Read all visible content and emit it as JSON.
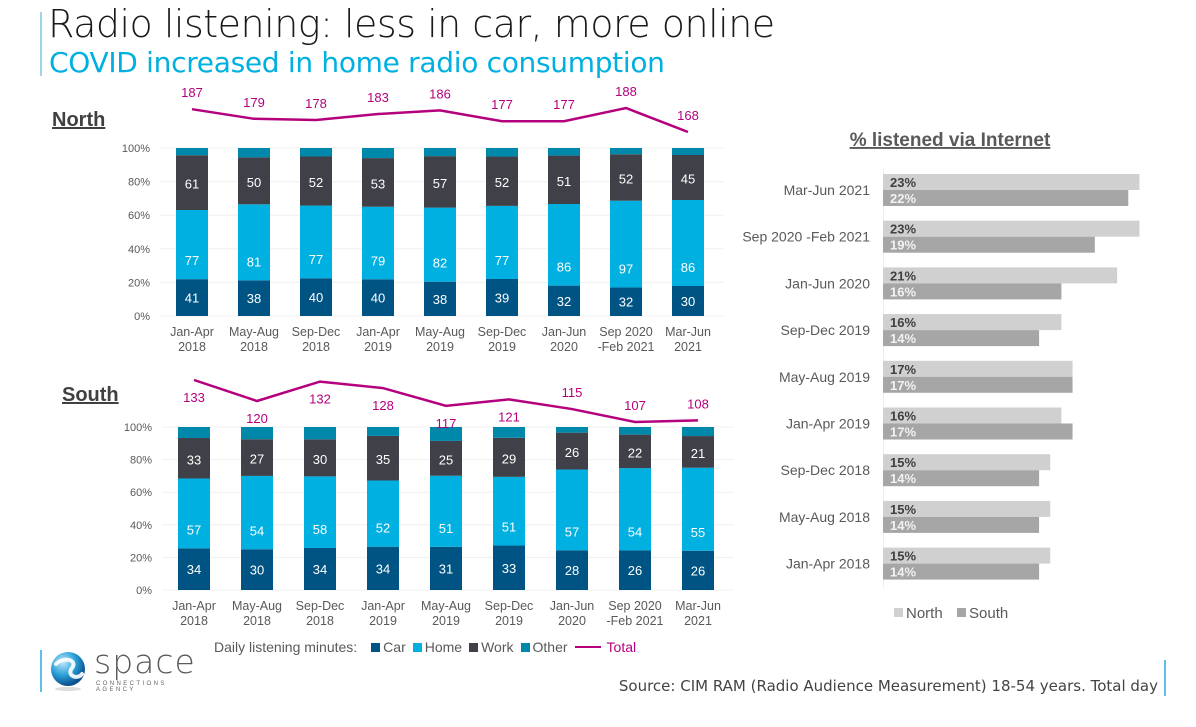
{
  "header": {
    "title": "Radio listening: less in car, more online",
    "subtitle": "COVID increased in home radio consumption"
  },
  "colors": {
    "car": "#005483",
    "home": "#00b0e0",
    "work": "#404048",
    "other": "#0088aa",
    "total": "#b5007e",
    "north": "#d0d0d0",
    "south": "#a6a6a6",
    "subtitle": "#00b0e0"
  },
  "legend": {
    "prefix": "Daily listening minutes:",
    "car": "Car",
    "home": "Home",
    "work": "Work",
    "other": "Other",
    "total": "Total"
  },
  "footer": {
    "logo_word": "space",
    "logo_tagline": "CONNECTIONS AGENCY",
    "source": "Source: CIM RAM (Radio Audience Measurement) 18-54 years. Total day"
  },
  "chart_data": [
    {
      "type": "bar",
      "stacked": "percent",
      "title": "North",
      "ylim": [
        0,
        100
      ],
      "yticks": [
        "0%",
        "20%",
        "40%",
        "60%",
        "80%",
        "100%"
      ],
      "categories": [
        [
          "Jan-Apr",
          "2018"
        ],
        [
          "May-Aug",
          "2018"
        ],
        [
          "Sep-Dec",
          "2018"
        ],
        [
          "Jan-Apr",
          "2019"
        ],
        [
          "May-Aug",
          "2019"
        ],
        [
          "Sep-Dec",
          "2019"
        ],
        [
          "Jan-Jun",
          "2020"
        ],
        [
          "Sep 2020",
          "-Feb 2021"
        ],
        [
          "Mar-Jun",
          "2021"
        ]
      ],
      "series": [
        {
          "name": "Car",
          "values": [
            41,
            38,
            40,
            40,
            38,
            39,
            32,
            32,
            30
          ]
        },
        {
          "name": "Home",
          "values": [
            77,
            81,
            77,
            79,
            82,
            77,
            86,
            97,
            86
          ]
        },
        {
          "name": "Work",
          "values": [
            61,
            50,
            52,
            53,
            57,
            52,
            51,
            52,
            45
          ]
        },
        {
          "name": "Other",
          "values": [
            8,
            10,
            9,
            11,
            9,
            9,
            8,
            7,
            7
          ]
        }
      ],
      "total": {
        "name": "Total",
        "values": [
          187,
          179,
          178,
          183,
          186,
          177,
          177,
          188,
          168
        ]
      }
    },
    {
      "type": "bar",
      "stacked": "percent",
      "title": "South",
      "ylim": [
        0,
        100
      ],
      "yticks": [
        "0%",
        "20%",
        "40%",
        "60%",
        "80%",
        "100%"
      ],
      "categories": [
        [
          "Jan-Apr",
          "2018"
        ],
        [
          "May-Aug",
          "2018"
        ],
        [
          "Sep-Dec",
          "2018"
        ],
        [
          "Jan-Apr",
          "2019"
        ],
        [
          "May-Aug",
          "2019"
        ],
        [
          "Sep-Dec",
          "2019"
        ],
        [
          "Jan-Jun",
          "2020"
        ],
        [
          "Sep 2020",
          "-Feb 2021"
        ],
        [
          "Mar-Jun",
          "2021"
        ]
      ],
      "series": [
        {
          "name": "Car",
          "values": [
            34,
            30,
            34,
            34,
            31,
            33,
            28,
            26,
            26
          ]
        },
        {
          "name": "Home",
          "values": [
            57,
            54,
            58,
            52,
            51,
            51,
            57,
            54,
            55
          ]
        },
        {
          "name": "Work",
          "values": [
            33,
            27,
            30,
            35,
            25,
            29,
            26,
            22,
            21
          ]
        },
        {
          "name": "Other",
          "values": [
            9,
            9,
            10,
            7,
            10,
            8,
            4,
            5,
            6
          ]
        }
      ],
      "total": {
        "name": "Total",
        "values": [
          133,
          120,
          132,
          128,
          117,
          121,
          115,
          107,
          108
        ]
      }
    },
    {
      "type": "bar",
      "orientation": "horizontal",
      "title": "% listened via Internet",
      "categories": [
        "Mar-Jun 2021",
        "Sep 2020 -Feb 2021",
        "Jan-Jun 2020",
        "Sep-Dec 2019",
        "May-Aug 2019",
        "Jan-Apr 2019",
        "Sep-Dec 2018",
        "May-Aug 2018",
        "Jan-Apr 2018"
      ],
      "series": [
        {
          "name": "North",
          "values": [
            23,
            23,
            21,
            16,
            17,
            16,
            15,
            15,
            15
          ]
        },
        {
          "name": "South",
          "values": [
            22,
            19,
            16,
            14,
            17,
            17,
            14,
            14,
            14
          ]
        }
      ],
      "xlim": [
        0,
        25
      ],
      "legend_position": "bottom"
    }
  ]
}
